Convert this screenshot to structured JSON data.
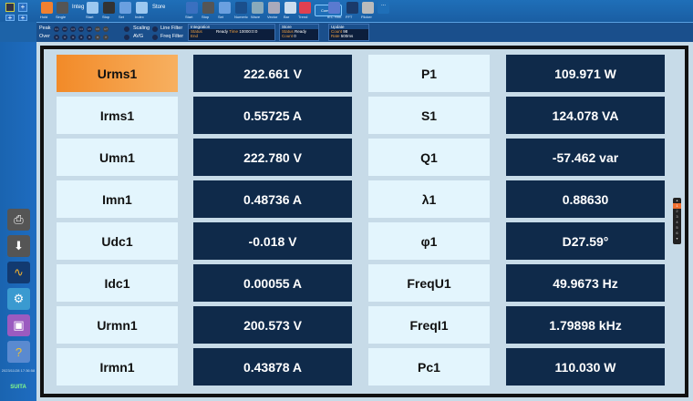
{
  "toolbar": {
    "groups": {
      "integ": "Integ",
      "store": "Store"
    },
    "buttons": [
      "Hold",
      "Single",
      "Start",
      "Stop",
      "Set",
      "Index",
      "Start",
      "Stop",
      "Set",
      "Numeric",
      "Wave",
      "Vector",
      "Bar",
      "Trend",
      "Combine",
      "IEC Hrm",
      "FFT",
      "Flicker",
      "..."
    ]
  },
  "status": {
    "peak": "Peak",
    "over": "Over",
    "u_channels": [
      "U1",
      "U2",
      "U3",
      "U4",
      "U5",
      "U6",
      "U7"
    ],
    "i_channels": [
      "I1",
      "I2",
      "I3",
      "I4",
      "I5",
      "I6",
      "I7"
    ],
    "scaling": "Scaling",
    "avg": "AVG",
    "line_filter": "Line Filter",
    "freq_filter": "Freq Filter",
    "integration": {
      "title": "Integration",
      "status_label": "Status",
      "status": "Ready",
      "time_label": "Time",
      "time": "10000:0:0",
      "end_label": "End"
    },
    "store": {
      "title": "Store",
      "status_label": "Status",
      "status": "Ready",
      "count_label": "Count",
      "count": "0"
    },
    "update": {
      "title": "Update",
      "count_label": "Count",
      "count": "98",
      "rate_label": "Rate",
      "rate": "500ms"
    }
  },
  "sidebar": {
    "items": [
      "print",
      "save",
      "waveform-settings",
      "settings",
      "screenshot",
      "help"
    ],
    "datetime": "2023/11/28 17:36:58",
    "brand": "SUITA"
  },
  "measurements": [
    {
      "label": "Urms1",
      "value": "222.661  V",
      "label2": "P1",
      "value2": "109.971  W"
    },
    {
      "label": "Irms1",
      "value": "0.55725  A",
      "label2": "S1",
      "value2": "124.078  VA"
    },
    {
      "label": "Umn1",
      "value": "222.780  V",
      "label2": "Q1",
      "value2": "-57.462  var"
    },
    {
      "label": "Imn1",
      "value": "0.48736  A",
      "label2": "λ1",
      "value2": "0.88630"
    },
    {
      "label": "Udc1",
      "value": "-0.018  V",
      "label2": "φ1",
      "value2": "D27.59°"
    },
    {
      "label": "Idc1",
      "value": "0.00055  A",
      "label2": "FreqU1",
      "value2": "49.9673 Hz"
    },
    {
      "label": "Urmn1",
      "value": "200.573  V",
      "label2": "FreqI1",
      "value2": "1.79898 kHz"
    },
    {
      "label": "Irmn1",
      "value": "0.43878  A",
      "label2": "Pc1",
      "value2": "110.030  W"
    }
  ],
  "pager": {
    "pages": [
      "1",
      "2",
      "3",
      "4",
      "5",
      "6"
    ],
    "current": "1"
  },
  "colors": {
    "selected": "#f28a28",
    "value_bg": "#0f2a4a",
    "label_bg": "#e3f5fd"
  }
}
